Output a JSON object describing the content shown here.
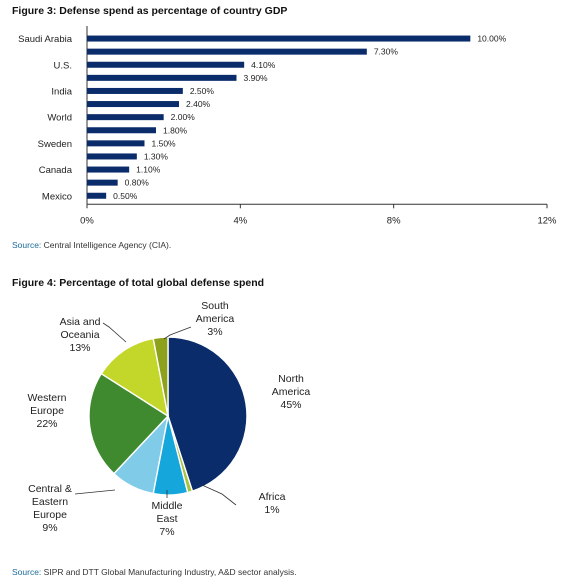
{
  "figure3": {
    "title": "Figure 3: Defense spend as percentage of country GDP",
    "source_label": "Source:",
    "source_text": "Central Intelligence Agency (CIA)."
  },
  "figure4": {
    "title": "Figure 4: Percentage of total global defense spend",
    "source_label": "Source:",
    "source_text": "SIPR and DTT Global Manufacturing Industry, A&D sector analysis."
  },
  "chart_data": [
    {
      "type": "bar",
      "orientation": "horizontal",
      "title": "Figure 3: Defense spend as percentage of country GDP",
      "categories": [
        "Saudi Arabia",
        "",
        "U.S.",
        "",
        "India",
        "",
        "World",
        "",
        "Sweden",
        "",
        "Canada",
        "",
        "Mexico"
      ],
      "values": [
        10.0,
        7.3,
        4.1,
        3.9,
        2.5,
        2.4,
        2.0,
        1.8,
        1.5,
        1.3,
        1.1,
        0.8,
        0.5
      ],
      "data_labels": [
        "10.00%",
        "7.30%",
        "4.10%",
        "3.90%",
        "2.50%",
        "2.40%",
        "2.00%",
        "1.80%",
        "1.50%",
        "1.30%",
        "1.10%",
        "0.80%",
        "0.50%"
      ],
      "xlim": [
        0,
        12
      ],
      "xticks": [
        0,
        4,
        8,
        12
      ],
      "xtick_labels": [
        "0%",
        "4%",
        "8%",
        "12%"
      ],
      "bar_color": "#0b2c6b",
      "grid": false
    },
    {
      "type": "pie",
      "title": "Figure 4: Percentage of total global defense spend",
      "slices": [
        {
          "label": [
            "North",
            "America",
            "45%"
          ],
          "value": 45,
          "color": "#0b2c6b"
        },
        {
          "label": [
            "Africa",
            "1%"
          ],
          "value": 1,
          "color": "#a9c23f"
        },
        {
          "label": [
            "Middle",
            "East",
            "7%"
          ],
          "value": 7,
          "color": "#15a6dc"
        },
        {
          "label": [
            "Central &",
            "Eastern",
            "Europe",
            "9%"
          ],
          "value": 9,
          "color": "#7fcbe8"
        },
        {
          "label": [
            "Western",
            "Europe",
            "22%"
          ],
          "value": 22,
          "color": "#3f8a2f"
        },
        {
          "label": [
            "Asia and",
            "Oceania",
            "13%"
          ],
          "value": 13,
          "color": "#c3d62a"
        },
        {
          "label": [
            "South",
            "America",
            "3%"
          ],
          "value": 3,
          "color": "#8ea11d"
        }
      ],
      "start_angle_deg": 0,
      "direction": "clockwise"
    }
  ]
}
